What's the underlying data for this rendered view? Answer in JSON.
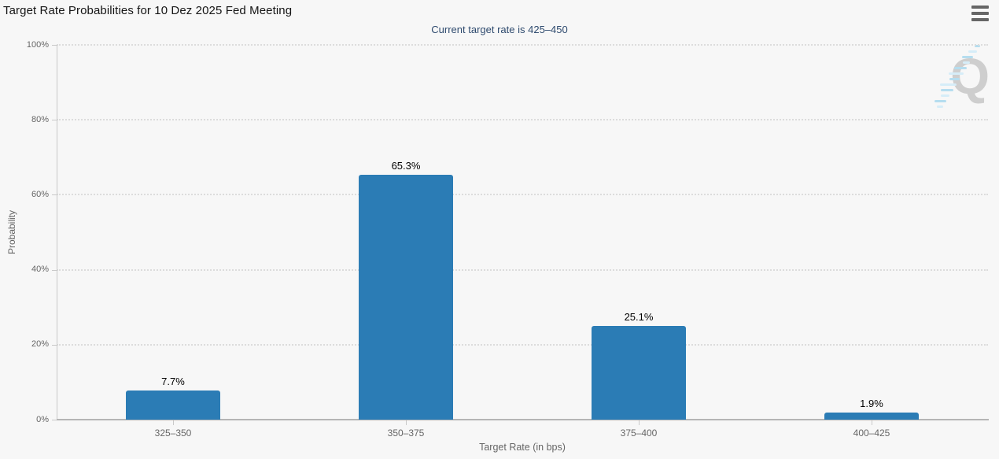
{
  "header": {
    "title": "Target Rate Probabilities for 10 Dez 2025 Fed Meeting",
    "subtitle": "Current target rate is 425–450"
  },
  "menu": {
    "icon": "hamburger-menu-icon"
  },
  "watermark": {
    "letter": "Q"
  },
  "chart_data": {
    "type": "bar",
    "title": "Target Rate Probabilities for 10 Dez 2025 Fed Meeting",
    "subtitle": "Current target rate is 425–450",
    "categories": [
      "325–350",
      "350–375",
      "375–400",
      "400–425"
    ],
    "values": [
      7.7,
      65.3,
      25.1,
      1.9
    ],
    "value_labels": [
      "7.7%",
      "65.3%",
      "25.1%",
      "1.9%"
    ],
    "xlabel": "Target Rate (in bps)",
    "ylabel": "Probability",
    "ylim": [
      0,
      100
    ],
    "yticks": [
      0,
      20,
      40,
      60,
      80,
      100
    ],
    "ytick_labels": [
      "0%",
      "20%",
      "40%",
      "60%",
      "80%",
      "100%"
    ],
    "grid": "horizontal-dotted",
    "legend": "none",
    "bar_color": "#2b7cb5"
  },
  "colors": {
    "background": "#f7f7f7",
    "bar": "#2b7cb5",
    "title_text": "#151515",
    "subtitle_text": "#2e4a6e",
    "axis_text": "#666666",
    "gridline": "#dcdcdc"
  }
}
